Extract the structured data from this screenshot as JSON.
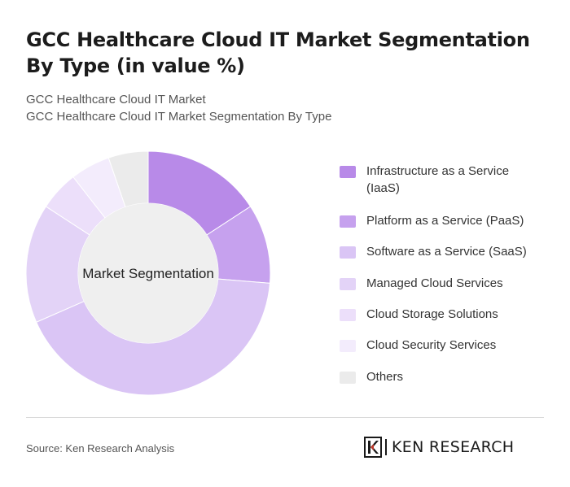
{
  "header": {
    "title": "GCC Healthcare Cloud IT Market Segmentation By Type (in value %)",
    "subtitle_line1": "GCC Healthcare Cloud IT Market",
    "subtitle_line2": "GCC Healthcare Cloud IT Market Segmentation By Type"
  },
  "chart_data": {
    "type": "pie",
    "variant": "donut",
    "center_label": "Market Segmentation",
    "categories": [
      "Infrastructure as a Service (IaaS)",
      "Platform as a Service (PaaS)",
      "Software as a Service (SaaS)",
      "Managed Cloud Services",
      "Cloud Storage Solutions",
      "Cloud Security Services",
      "Others"
    ],
    "values": [
      15,
      10,
      40,
      15,
      5,
      5,
      5
    ],
    "colors": [
      "#b88ae8",
      "#c6a1ee",
      "#dac5f5",
      "#e3d3f7",
      "#ecdffa",
      "#f3ecfc",
      "#ebebeb"
    ],
    "legend_position": "right"
  },
  "footer": {
    "source": "Source: Ken Research Analysis",
    "logo_text": "KEN RESEARCH"
  }
}
